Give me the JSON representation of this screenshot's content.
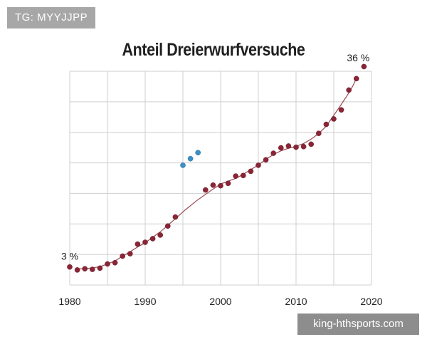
{
  "overlay": {
    "tag": "TG: MYYJJPP",
    "watermark": "king-hthsports.com"
  },
  "colors": {
    "main_points": "#8b2435",
    "other_points": "#3b8fc4",
    "trend": "#9a4a55",
    "grid": "#cfcfcf"
  },
  "chart_data": {
    "type": "scatter",
    "title": "Anteil Dreierwurfversuche",
    "xlabel": "",
    "ylabel": "",
    "x_ticks": [
      "1980",
      "1990",
      "2000",
      "2010",
      "2020"
    ],
    "xlim": [
      1980,
      2020
    ],
    "ylim": [
      0,
      36
    ],
    "grid": true,
    "annotations": [
      {
        "text": "3 %",
        "x": 1980,
        "y": 3
      },
      {
        "text": "36 %",
        "x": 2019,
        "y": 36
      }
    ],
    "series": [
      {
        "role": "main",
        "x": [
          1980,
          1981,
          1982,
          1983,
          1984,
          1985,
          1986,
          1987,
          1988,
          1989,
          1990,
          1991,
          1992,
          1993,
          1994,
          1995,
          1996,
          1997,
          1998,
          1999,
          2000,
          2001,
          2002,
          2003,
          2004,
          2005,
          2006,
          2007,
          2008,
          2009,
          2010,
          2011,
          2012,
          2013,
          2014,
          2015,
          2016,
          2017,
          2018,
          2019
        ],
        "y": [
          3,
          2.5,
          2.7,
          2.6,
          2.8,
          3.5,
          3.7,
          4.8,
          5.2,
          6.8,
          7.1,
          7.7,
          8.3,
          9.8,
          11.3,
          null,
          null,
          null,
          15.8,
          16.6,
          16.5,
          16.9,
          18.1,
          18.2,
          18.9,
          19.9,
          20.8,
          21.9,
          22.8,
          23.1,
          22.9,
          23.0,
          23.4,
          25.2,
          26.7,
          27.6,
          29.1,
          32.4,
          34.3,
          36.3
        ]
      },
      {
        "role": "other",
        "x": [
          1995,
          1996,
          1997
        ],
        "y": [
          19.9,
          21.0,
          22.0
        ]
      }
    ]
  }
}
